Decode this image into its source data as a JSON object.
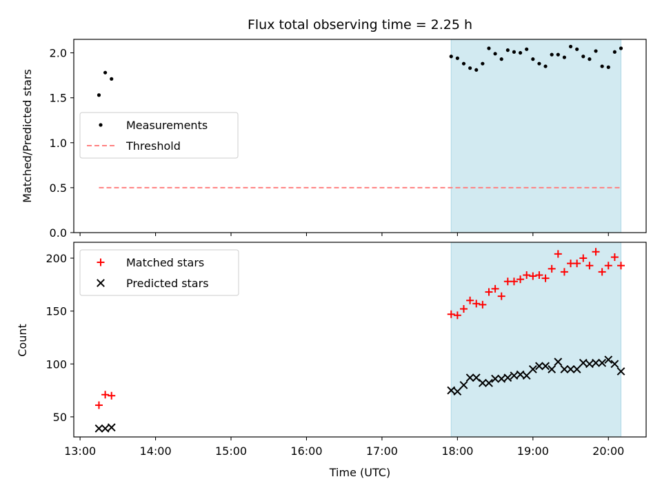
{
  "chart_data": [
    {
      "type": "scatter",
      "title": "Flux total observing time = 2.25 h",
      "xlabel": "",
      "ylabel": "Matched/Predicted stars",
      "ylim": [
        0,
        2.15
      ],
      "yticks": [
        "0.0",
        "0.5",
        "1.0",
        "1.5",
        "2.0"
      ],
      "shaded_span": {
        "start": "17:55",
        "end": "20:10",
        "color": "#add8e6"
      },
      "legend": {
        "position": "center-left",
        "entries": [
          "Measurements",
          "Threshold"
        ]
      },
      "series": [
        {
          "name": "Measurements",
          "marker": "dot",
          "color": "#000000",
          "points": [
            [
              "13:15",
              1.53
            ],
            [
              "13:20",
              1.78
            ],
            [
              "13:25",
              1.71
            ],
            [
              "17:55",
              1.96
            ],
            [
              "18:00",
              1.94
            ],
            [
              "18:05",
              1.88
            ],
            [
              "18:10",
              1.83
            ],
            [
              "18:15",
              1.81
            ],
            [
              "18:20",
              1.88
            ],
            [
              "18:25",
              2.05
            ],
            [
              "18:30",
              1.99
            ],
            [
              "18:35",
              1.93
            ],
            [
              "18:40",
              2.03
            ],
            [
              "18:45",
              2.01
            ],
            [
              "18:50",
              2.0
            ],
            [
              "18:55",
              2.04
            ],
            [
              "19:00",
              1.93
            ],
            [
              "19:05",
              1.88
            ],
            [
              "19:10",
              1.85
            ],
            [
              "19:15",
              1.98
            ],
            [
              "19:20",
              1.98
            ],
            [
              "19:25",
              1.95
            ],
            [
              "19:30",
              2.07
            ],
            [
              "19:35",
              2.04
            ],
            [
              "19:40",
              1.96
            ],
            [
              "19:45",
              1.93
            ],
            [
              "19:50",
              2.02
            ],
            [
              "19:55",
              1.85
            ],
            [
              "20:00",
              1.84
            ],
            [
              "20:05",
              2.01
            ],
            [
              "20:10",
              2.05
            ]
          ]
        },
        {
          "name": "Threshold",
          "marker": "dashed-line",
          "color": "#ff7f7f",
          "points": [
            [
              "13:15",
              0.5
            ],
            [
              "20:10",
              0.5
            ]
          ]
        }
      ]
    },
    {
      "type": "scatter",
      "title": "",
      "xlabel": "Time (UTC)",
      "ylabel": "Count",
      "ylim": [
        31,
        215
      ],
      "yticks": [
        "50",
        "100",
        "150",
        "200"
      ],
      "xticks": [
        "13:00",
        "14:00",
        "15:00",
        "16:00",
        "17:00",
        "18:00",
        "19:00",
        "20:00"
      ],
      "xlim": [
        "12:55",
        "20:30"
      ],
      "shaded_span": {
        "start": "17:55",
        "end": "20:10",
        "color": "#add8e6"
      },
      "legend": {
        "position": "top-left",
        "entries": [
          "Matched stars",
          "Predicted stars"
        ]
      },
      "series": [
        {
          "name": "Matched stars",
          "marker": "plus",
          "color": "#ff0000",
          "points": [
            [
              "13:15",
              61
            ],
            [
              "13:20",
              71
            ],
            [
              "13:25",
              70
            ],
            [
              "17:55",
              147
            ],
            [
              "18:00",
              146
            ],
            [
              "18:05",
              152
            ],
            [
              "18:10",
              160
            ],
            [
              "18:15",
              157
            ],
            [
              "18:20",
              156
            ],
            [
              "18:25",
              168
            ],
            [
              "18:30",
              171
            ],
            [
              "18:35",
              164
            ],
            [
              "18:40",
              178
            ],
            [
              "18:45",
              178
            ],
            [
              "18:50",
              180
            ],
            [
              "18:55",
              184
            ],
            [
              "19:00",
              183
            ],
            [
              "19:05",
              184
            ],
            [
              "19:10",
              181
            ],
            [
              "19:15",
              190
            ],
            [
              "19:20",
              204
            ],
            [
              "19:25",
              187
            ],
            [
              "19:30",
              195
            ],
            [
              "19:35",
              195
            ],
            [
              "19:40",
              200
            ],
            [
              "19:45",
              193
            ],
            [
              "19:50",
              206
            ],
            [
              "19:55",
              187
            ],
            [
              "20:00",
              193
            ],
            [
              "20:05",
              201
            ],
            [
              "20:10",
              193
            ]
          ]
        },
        {
          "name": "Predicted stars",
          "marker": "x",
          "color": "#000000",
          "points": [
            [
              "13:15",
              39
            ],
            [
              "13:20",
              39
            ],
            [
              "13:25",
              40
            ],
            [
              "17:55",
              75
            ],
            [
              "18:00",
              74
            ],
            [
              "18:05",
              80
            ],
            [
              "18:10",
              87
            ],
            [
              "18:15",
              87
            ],
            [
              "18:20",
              82
            ],
            [
              "18:25",
              82
            ],
            [
              "18:30",
              86
            ],
            [
              "18:35",
              86
            ],
            [
              "18:40",
              87
            ],
            [
              "18:45",
              89
            ],
            [
              "18:50",
              90
            ],
            [
              "18:55",
              89
            ],
            [
              "19:00",
              95
            ],
            [
              "19:05",
              98
            ],
            [
              "19:10",
              98
            ],
            [
              "19:15",
              95
            ],
            [
              "19:20",
              102
            ],
            [
              "19:25",
              95
            ],
            [
              "19:30",
              95
            ],
            [
              "19:35",
              95
            ],
            [
              "19:40",
              101
            ],
            [
              "19:45",
              100
            ],
            [
              "19:50",
              101
            ],
            [
              "19:55",
              101
            ],
            [
              "20:00",
              104
            ],
            [
              "20:05",
              100
            ],
            [
              "20:10",
              93
            ]
          ]
        }
      ]
    }
  ]
}
